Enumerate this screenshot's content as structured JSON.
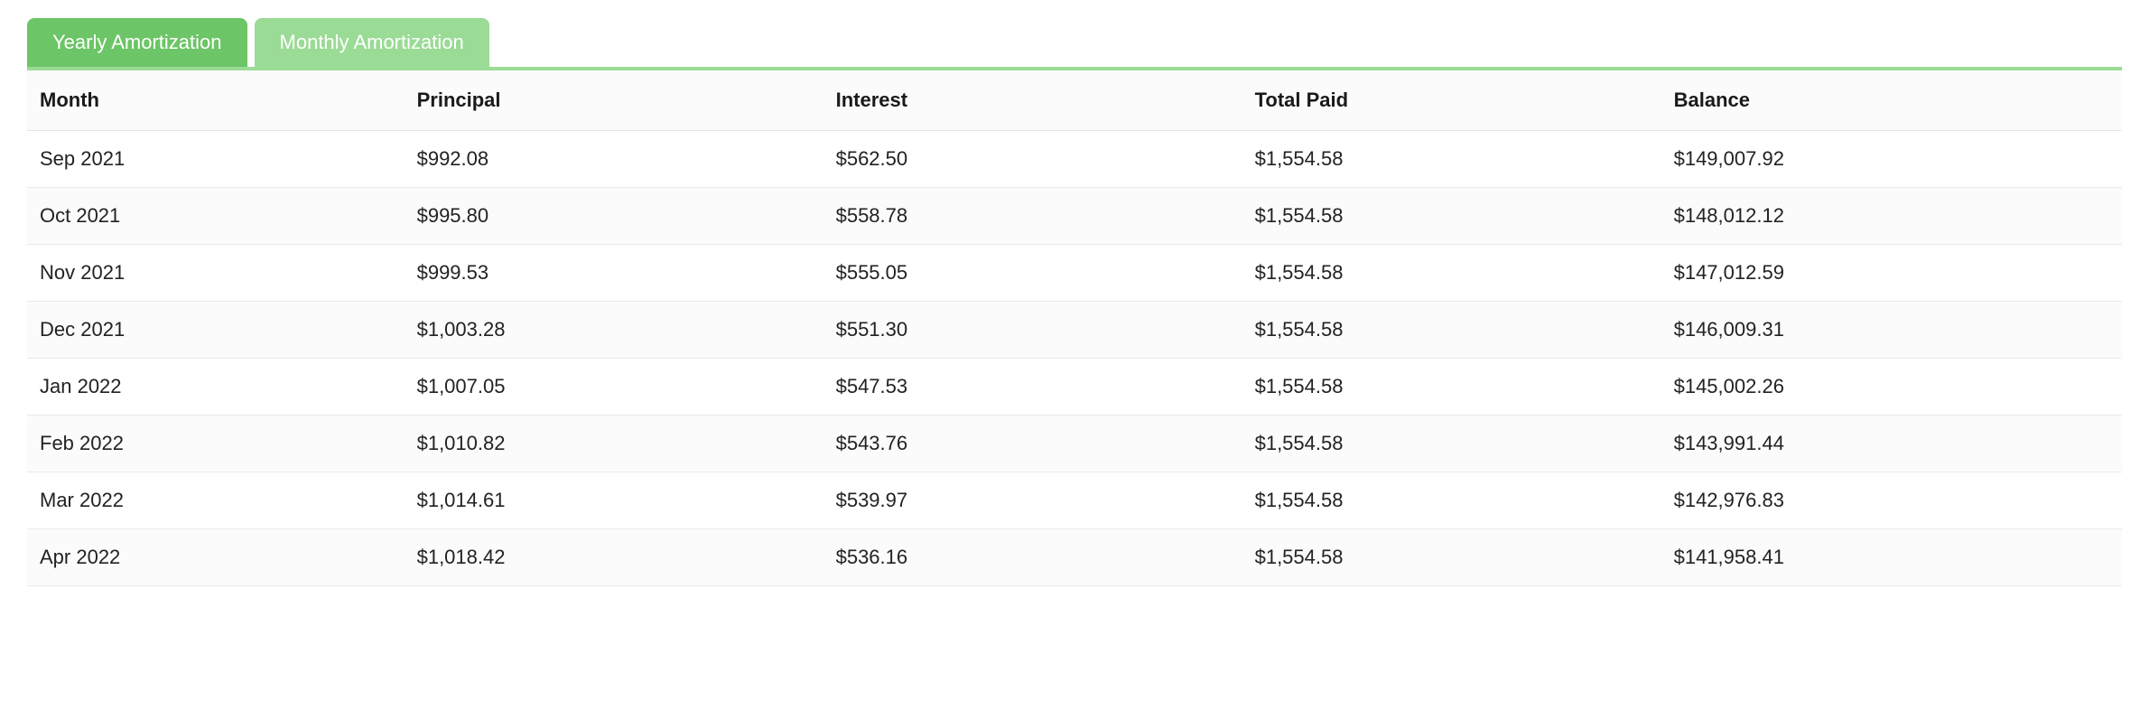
{
  "tabs": {
    "yearly": {
      "label": "Yearly Amortization",
      "active": false
    },
    "monthly": {
      "label": "Monthly Amortization",
      "active": true
    }
  },
  "table": {
    "type": "table",
    "colors": {
      "tab_inactive_bg": "#6cc566",
      "tab_active_bg": "#9adb95",
      "tab_text": "#ffffff",
      "header_bg": "#fbfbfb",
      "row_alt_bg": "#fbfbfb",
      "border": "#e5e5e5",
      "row_border": "#eaeaea",
      "text": "#1a1a1a",
      "background": "#ffffff"
    },
    "typography": {
      "font_family": "-apple-system",
      "header_weight": 700,
      "body_weight": 400,
      "cell_fontsize_pt": 16
    },
    "columns": [
      {
        "key": "month",
        "label": "Month",
        "width_pct": 18,
        "align": "left"
      },
      {
        "key": "principal",
        "label": "Principal",
        "width_pct": 20,
        "align": "left"
      },
      {
        "key": "interest",
        "label": "Interest",
        "width_pct": 20,
        "align": "left"
      },
      {
        "key": "total_paid",
        "label": "Total Paid",
        "width_pct": 20,
        "align": "left"
      },
      {
        "key": "balance",
        "label": "Balance",
        "width_pct": 22,
        "align": "left"
      }
    ],
    "rows": [
      {
        "month": "Sep 2021",
        "principal": "$992.08",
        "interest": "$562.50",
        "total_paid": "$1,554.58",
        "balance": "$149,007.92"
      },
      {
        "month": "Oct 2021",
        "principal": "$995.80",
        "interest": "$558.78",
        "total_paid": "$1,554.58",
        "balance": "$148,012.12"
      },
      {
        "month": "Nov 2021",
        "principal": "$999.53",
        "interest": "$555.05",
        "total_paid": "$1,554.58",
        "balance": "$147,012.59"
      },
      {
        "month": "Dec 2021",
        "principal": "$1,003.28",
        "interest": "$551.30",
        "total_paid": "$1,554.58",
        "balance": "$146,009.31"
      },
      {
        "month": "Jan 2022",
        "principal": "$1,007.05",
        "interest": "$547.53",
        "total_paid": "$1,554.58",
        "balance": "$145,002.26"
      },
      {
        "month": "Feb 2022",
        "principal": "$1,010.82",
        "interest": "$543.76",
        "total_paid": "$1,554.58",
        "balance": "$143,991.44"
      },
      {
        "month": "Mar 2022",
        "principal": "$1,014.61",
        "interest": "$539.97",
        "total_paid": "$1,554.58",
        "balance": "$142,976.83"
      },
      {
        "month": "Apr 2022",
        "principal": "$1,018.42",
        "interest": "$536.16",
        "total_paid": "$1,554.58",
        "balance": "$141,958.41"
      }
    ]
  }
}
